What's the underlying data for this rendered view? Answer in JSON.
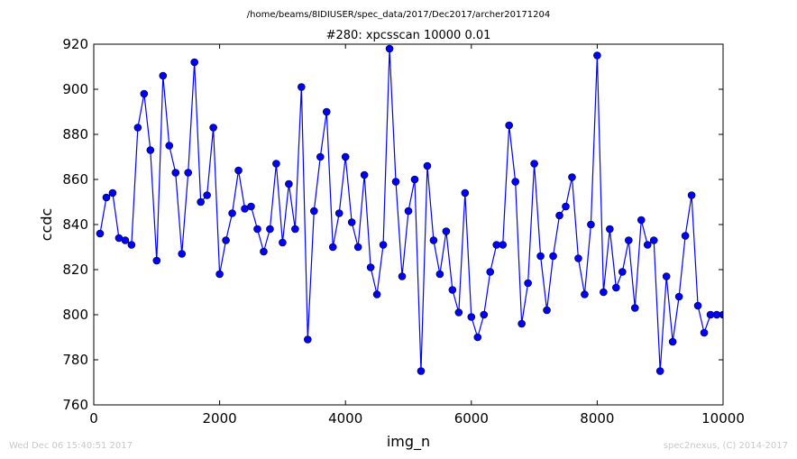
{
  "suptitle": "/home/beams/8IDIUSER/spec_data/2017/Dec2017/archer20171204",
  "footer": {
    "left": "Wed Dec 06 15:40:51 2017",
    "right": "spec2nexus, (C) 2014-2017"
  },
  "chart_data": {
    "type": "line",
    "title": "#280: xpcsscan 10000 0.01",
    "xlabel": "img_n",
    "ylabel": "ccdc",
    "xlim": [
      0,
      10000
    ],
    "ylim": [
      760,
      920
    ],
    "xticks": [
      0,
      2000,
      4000,
      6000,
      8000,
      10000
    ],
    "yticks": [
      760,
      780,
      800,
      820,
      840,
      860,
      880,
      900,
      920
    ],
    "grid": false,
    "color": "#0000ff",
    "marker": "circle",
    "series": [
      {
        "x": [
          100,
          200,
          300,
          400,
          500,
          600,
          700,
          800,
          900,
          1000,
          1100,
          1200,
          1300,
          1400,
          1500,
          1600,
          1700,
          1800,
          1900,
          2000,
          2100,
          2200,
          2300,
          2400,
          2500,
          2600,
          2700,
          2800,
          2900,
          3000,
          3100,
          3200,
          3300,
          3400,
          3500,
          3600,
          3700,
          3800,
          3900,
          4000,
          4100,
          4200,
          4300,
          4400,
          4500,
          4600,
          4700,
          4800,
          4900,
          5000,
          5100,
          5200,
          5300,
          5400,
          5500,
          5600,
          5700,
          5800,
          5900,
          6000,
          6100,
          6200,
          6300,
          6400,
          6500,
          6600,
          6700,
          6800,
          6900,
          7000,
          7100,
          7200,
          7300,
          7400,
          7500,
          7600,
          7700,
          7800,
          7900,
          8000,
          8100,
          8200,
          8300,
          8400,
          8500,
          8600,
          8700,
          8800,
          8900,
          9000,
          9100,
          9200,
          9300,
          9400,
          9500,
          9600,
          9700,
          9800,
          9900,
          10000
        ],
        "y": [
          836,
          852,
          854,
          834,
          833,
          831,
          883,
          898,
          873,
          824,
          906,
          875,
          863,
          827,
          863,
          912,
          850,
          853,
          883,
          818,
          833,
          845,
          864,
          847,
          848,
          838,
          828,
          838,
          867,
          832,
          858,
          838,
          901,
          789,
          846,
          870,
          890,
          830,
          845,
          870,
          841,
          830,
          862,
          821,
          809,
          831,
          918,
          859,
          817,
          846,
          860,
          775,
          866,
          833,
          818,
          837,
          811,
          801,
          854,
          799,
          790,
          800,
          819,
          831,
          831,
          884,
          859,
          796,
          814,
          867,
          826,
          802,
          826,
          844,
          848,
          861,
          825,
          809,
          840,
          915,
          810,
          838,
          812,
          819,
          833,
          803,
          842,
          831,
          833,
          775,
          817,
          788,
          808,
          835,
          853,
          804,
          792,
          800,
          800,
          800
        ]
      }
    ]
  }
}
